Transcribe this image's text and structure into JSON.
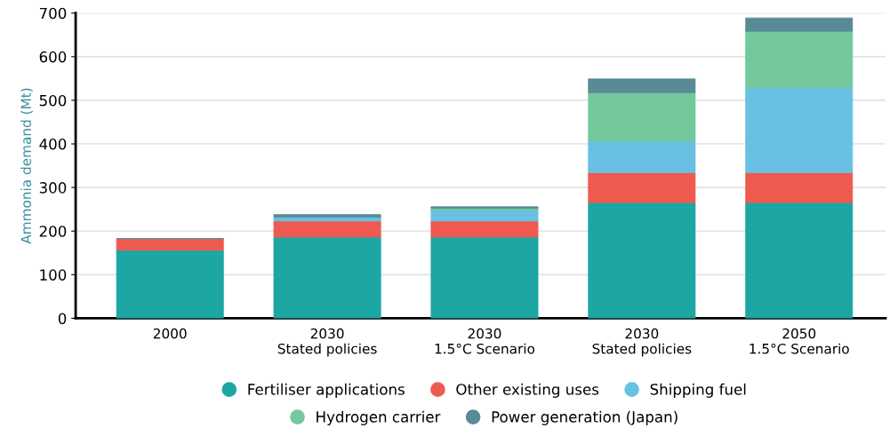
{
  "chart_data": {
    "type": "bar",
    "stacked": true,
    "ylabel": "Ammonia demand (Mt)",
    "categories": [
      "2000",
      "2030\nStated policies",
      "2030\n1.5°C Scenario",
      "2030\nStated policies",
      "2050\n1.5°C Scenario"
    ],
    "series": [
      {
        "name": "Fertiliser applications",
        "color": "#1ca6a4",
        "values": [
          156,
          186,
          186,
          265,
          265
        ]
      },
      {
        "name": "Other existing uses",
        "color": "#ef5a50",
        "values": [
          27,
          37,
          37,
          69,
          69
        ]
      },
      {
        "name": "Shipping fuel",
        "color": "#68c1e3",
        "values": [
          0,
          9,
          25,
          72,
          195
        ]
      },
      {
        "name": "Hydrogen carrier",
        "color": "#73c89c",
        "values": [
          0,
          0,
          4,
          111,
          129
        ]
      },
      {
        "name": "Power generation (Japan)",
        "color": "#588b95",
        "values": [
          0,
          6,
          4,
          32,
          31
        ]
      }
    ],
    "ylim": [
      0,
      700
    ],
    "yticks": [
      0,
      100,
      200,
      300,
      400,
      500,
      600,
      700
    ],
    "grid": "y",
    "legend": "bottom",
    "marker": "circle"
  }
}
